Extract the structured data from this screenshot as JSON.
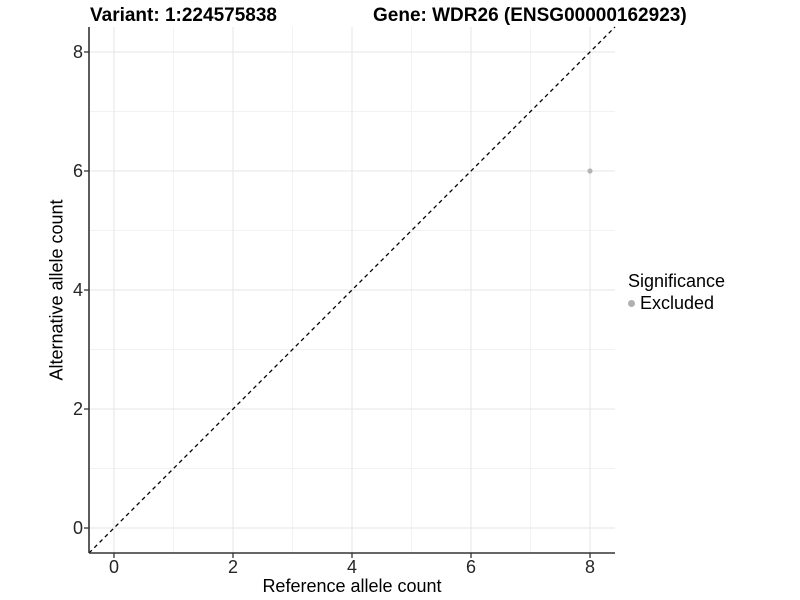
{
  "chart_data": {
    "type": "scatter",
    "title_left": "Variant: 1:224575838",
    "title_right": "Gene: WDR26 (ENSG00000162923)",
    "xlabel": "Reference allele count",
    "ylabel": "Alternative allele count",
    "xlim": [
      -0.42,
      8.42
    ],
    "ylim": [
      -0.42,
      8.42
    ],
    "x_ticks": [
      0,
      2,
      4,
      6,
      8
    ],
    "y_ticks": [
      0,
      2,
      4,
      6,
      8
    ],
    "x_minor_ticks": [
      1,
      3,
      5,
      7
    ],
    "y_minor_ticks": [
      1,
      3,
      5,
      7
    ],
    "grid": "major+minor",
    "series": [
      {
        "name": "Excluded",
        "color": "#b5b5b5",
        "points": [
          {
            "x": 8,
            "y": 6
          }
        ]
      }
    ],
    "reference_line": {
      "kind": "diagonal y=x",
      "slope": 1,
      "intercept": 0,
      "style": "dashed",
      "color": "#000000"
    },
    "legend": {
      "title": "Significance",
      "position": "right",
      "items": [
        {
          "label": "Excluded",
          "color": "#b0b0b0"
        }
      ]
    },
    "colors": {
      "background": "#ffffff",
      "grid_major": "#e6e6e6",
      "grid_minor": "#f2f2f2",
      "axis_line": "#333333",
      "tick_mark": "#333333",
      "tick_label": "#262626",
      "point": "#b5b5b5"
    }
  }
}
